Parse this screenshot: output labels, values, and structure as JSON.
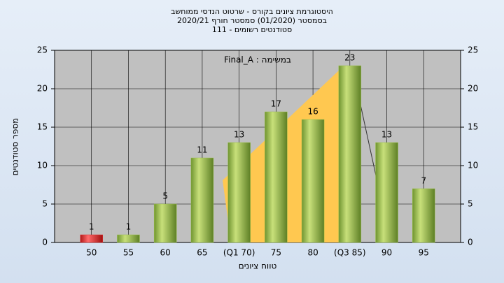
{
  "chart_data": {
    "type": "bar",
    "title": [
      "היסטוגרמת ציונים בקורס - שרטוט הנדסי ממוחשב",
      "בסמסטר (01/2020) סמסטר חורף 2020/21",
      "סטודנטים רשומים - 111"
    ],
    "annotation": "במשימה : Final_A",
    "x_label": "טווח ציונים",
    "y_label": "מספר סטודנטים",
    "categories": [
      "50",
      "55",
      "60",
      "65",
      "(Q1 70)",
      "75",
      "80",
      "(Q3 85)",
      "90",
      "95"
    ],
    "values": [
      1,
      1,
      5,
      11,
      13,
      17,
      16,
      23,
      13,
      7
    ],
    "colors": [
      "#e03030",
      "#9cc24a",
      "#9cc24a",
      "#9cc24a",
      "#9cc24a",
      "#9cc24a",
      "#9cc24a",
      "#9cc24a",
      "#9cc24a",
      "#9cc24a"
    ],
    "ylim": [
      0,
      25
    ],
    "yticks": [
      0,
      5,
      10,
      15,
      20,
      25
    ],
    "grid": true
  }
}
